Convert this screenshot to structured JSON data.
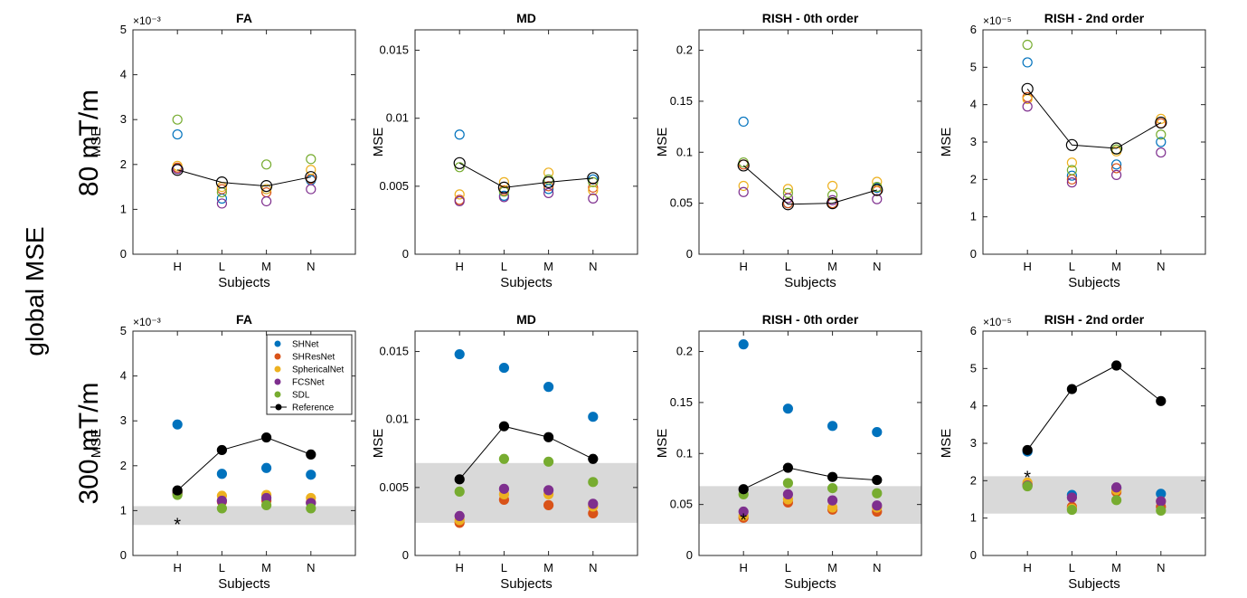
{
  "figure_label": "global MSE",
  "row_labels": [
    "80 mT/m",
    "300 mT/m"
  ],
  "chart_data": [
    {
      "type": "scatter",
      "title": "FA",
      "xlabel": "Subjects",
      "ylabel": "MSE",
      "ylim": [
        0,
        5
      ],
      "yticks": [
        "0",
        "1",
        "2",
        "3",
        "4",
        "5"
      ],
      "exponent_label": "×10⁻³",
      "categories": [
        "H",
        "L",
        "M",
        "N"
      ],
      "marker": "open",
      "series": [
        {
          "color": "#0072BD",
          "values": [
            2.67,
            1.24,
            1.45,
            1.65
          ]
        },
        {
          "color": "#D95319",
          "values": [
            1.93,
            1.45,
            1.38,
            1.68
          ]
        },
        {
          "color": "#EDB120",
          "values": [
            1.97,
            1.5,
            1.45,
            1.88
          ]
        },
        {
          "color": "#7E2F8E",
          "values": [
            1.9,
            1.13,
            1.18,
            1.45
          ]
        },
        {
          "color": "#77AC30",
          "values": [
            3.0,
            1.38,
            2.0,
            2.12
          ]
        }
      ],
      "reference": {
        "name": "Reference",
        "values": [
          1.88,
          1.6,
          1.52,
          1.72
        ]
      }
    },
    {
      "type": "scatter",
      "title": "MD",
      "xlabel": "Subjects",
      "ylabel": "MSE",
      "ylim": [
        0,
        0.0165
      ],
      "yticks": [
        "0",
        "0.005",
        "0.01",
        "0.015"
      ],
      "ytick_values": [
        0,
        0.005,
        0.01,
        0.015
      ],
      "categories": [
        "H",
        "L",
        "M",
        "N"
      ],
      "marker": "open",
      "series": [
        {
          "color": "#0072BD",
          "values": [
            0.0088,
            0.0043,
            0.0048,
            0.0055
          ]
        },
        {
          "color": "#D95319",
          "values": [
            0.004,
            0.0047,
            0.005,
            0.0049
          ]
        },
        {
          "color": "#EDB120",
          "values": [
            0.0044,
            0.0053,
            0.006,
            0.0047
          ]
        },
        {
          "color": "#7E2F8E",
          "values": [
            0.0039,
            0.0042,
            0.0045,
            0.0041
          ]
        },
        {
          "color": "#77AC30",
          "values": [
            0.0064,
            0.0046,
            0.0055,
            0.0053
          ]
        }
      ],
      "reference": {
        "name": "Reference",
        "values": [
          0.0067,
          0.0049,
          0.0053,
          0.0056
        ]
      }
    },
    {
      "type": "scatter",
      "title": "RISH - 0th order",
      "xlabel": "Subjects",
      "ylabel": "MSE",
      "ylim": [
        0,
        0.22
      ],
      "yticks": [
        "0",
        "0.05",
        "0.1",
        "0.15",
        "0.2"
      ],
      "ytick_values": [
        0,
        0.05,
        0.1,
        0.15,
        0.2
      ],
      "categories": [
        "H",
        "L",
        "M",
        "N"
      ],
      "marker": "open",
      "series": [
        {
          "color": "#0072BD",
          "values": [
            0.13,
            0.05,
            0.05,
            0.065
          ]
        },
        {
          "color": "#D95319",
          "values": [
            0.088,
            0.05,
            0.05,
            0.062
          ]
        },
        {
          "color": "#EDB120",
          "values": [
            0.067,
            0.064,
            0.067,
            0.071
          ]
        },
        {
          "color": "#7E2F8E",
          "values": [
            0.061,
            0.055,
            0.053,
            0.054
          ]
        },
        {
          "color": "#77AC30",
          "values": [
            0.09,
            0.06,
            0.058,
            0.066
          ]
        }
      ],
      "reference": {
        "name": "Reference",
        "values": [
          0.087,
          0.049,
          0.05,
          0.063
        ]
      }
    },
    {
      "type": "scatter",
      "title": "RISH - 2nd order",
      "xlabel": "Subjects",
      "ylabel": "MSE",
      "ylim": [
        0,
        6
      ],
      "yticks": [
        "0",
        "1",
        "2",
        "3",
        "4",
        "5",
        "6"
      ],
      "exponent_label": "×10⁻⁵",
      "categories": [
        "H",
        "L",
        "M",
        "N"
      ],
      "marker": "open",
      "series": [
        {
          "color": "#0072BD",
          "values": [
            5.13,
            2.1,
            2.4,
            3.0
          ]
        },
        {
          "color": "#D95319",
          "values": [
            4.2,
            2.0,
            2.3,
            3.5
          ]
        },
        {
          "color": "#EDB120",
          "values": [
            4.15,
            2.45,
            2.75,
            3.62
          ]
        },
        {
          "color": "#7E2F8E",
          "values": [
            3.95,
            1.92,
            2.12,
            2.72
          ]
        },
        {
          "color": "#77AC30",
          "values": [
            5.6,
            2.25,
            2.8,
            3.2
          ]
        }
      ],
      "reference": {
        "name": "Reference",
        "values": [
          4.42,
          2.92,
          2.83,
          3.52
        ]
      }
    },
    {
      "type": "scatter",
      "title": "FA",
      "xlabel": "Subjects",
      "ylabel": "MSE",
      "ylim": [
        0,
        5
      ],
      "yticks": [
        "0",
        "1",
        "2",
        "3",
        "4",
        "5"
      ],
      "exponent_label": "×10⁻³",
      "categories": [
        "H",
        "L",
        "M",
        "N"
      ],
      "marker": "filled",
      "band": [
        0.68,
        1.1
      ],
      "star": {
        "category": "H",
        "value": 0.72
      },
      "legend": [
        "SHNet",
        "SHResNet",
        "SphericalNet",
        "FCSNet",
        "SDL",
        "Reference"
      ],
      "series": [
        {
          "name": "SHNet",
          "color": "#0072BD",
          "values": [
            2.92,
            1.82,
            1.95,
            1.8
          ]
        },
        {
          "name": "SHResNet",
          "color": "#D95319",
          "values": [
            1.38,
            1.2,
            1.22,
            1.18
          ]
        },
        {
          "name": "SphericalNet",
          "color": "#EDB120",
          "values": [
            1.42,
            1.33,
            1.35,
            1.28
          ]
        },
        {
          "name": "FCSNet",
          "color": "#7E2F8E",
          "values": [
            1.4,
            1.22,
            1.28,
            1.17
          ]
        },
        {
          "name": "SDL",
          "color": "#77AC30",
          "values": [
            1.35,
            1.05,
            1.12,
            1.05
          ]
        }
      ],
      "reference": {
        "name": "Reference",
        "values": [
          1.45,
          2.35,
          2.63,
          2.25
        ]
      }
    },
    {
      "type": "scatter",
      "title": "MD",
      "xlabel": "Subjects",
      "ylabel": "MSE",
      "ylim": [
        0,
        0.0165
      ],
      "yticks": [
        "0",
        "0.005",
        "0.01",
        "0.015"
      ],
      "ytick_values": [
        0,
        0.005,
        0.01,
        0.015
      ],
      "categories": [
        "H",
        "L",
        "M",
        "N"
      ],
      "marker": "filled",
      "band": [
        0.0024,
        0.0068
      ],
      "series": [
        {
          "color": "#0072BD",
          "values": [
            0.0148,
            0.0138,
            0.0124,
            0.0102
          ]
        },
        {
          "color": "#D95319",
          "values": [
            0.0024,
            0.0041,
            0.0037,
            0.0031
          ]
        },
        {
          "color": "#EDB120",
          "values": [
            0.0026,
            0.0045,
            0.0045,
            0.0036
          ]
        },
        {
          "color": "#7E2F8E",
          "values": [
            0.0029,
            0.0049,
            0.0048,
            0.0038
          ]
        },
        {
          "color": "#77AC30",
          "values": [
            0.0047,
            0.0071,
            0.0069,
            0.0054
          ]
        }
      ],
      "reference": {
        "name": "Reference",
        "values": [
          0.0056,
          0.0095,
          0.0087,
          0.0071
        ]
      }
    },
    {
      "type": "scatter",
      "title": "RISH - 0th order",
      "xlabel": "Subjects",
      "ylabel": "MSE",
      "ylim": [
        0,
        0.22
      ],
      "yticks": [
        "0",
        "0.05",
        "0.1",
        "0.15",
        "0.2"
      ],
      "ytick_values": [
        0,
        0.05,
        0.1,
        0.15,
        0.2
      ],
      "categories": [
        "H",
        "L",
        "M",
        "N"
      ],
      "marker": "filled",
      "band": [
        0.031,
        0.068
      ],
      "star": {
        "category": "H",
        "value": 0.036
      },
      "series": [
        {
          "color": "#0072BD",
          "values": [
            0.207,
            0.144,
            0.127,
            0.121
          ]
        },
        {
          "color": "#D95319",
          "values": [
            0.037,
            0.052,
            0.045,
            0.043
          ]
        },
        {
          "color": "#EDB120",
          "values": [
            0.039,
            0.055,
            0.047,
            0.047
          ]
        },
        {
          "color": "#7E2F8E",
          "values": [
            0.043,
            0.06,
            0.054,
            0.049
          ]
        },
        {
          "color": "#77AC30",
          "values": [
            0.06,
            0.071,
            0.066,
            0.061
          ]
        }
      ],
      "reference": {
        "name": "Reference",
        "values": [
          0.065,
          0.086,
          0.077,
          0.074
        ]
      }
    },
    {
      "type": "scatter",
      "title": "RISH - 2nd order",
      "xlabel": "Subjects",
      "ylabel": "MSE",
      "ylim": [
        0,
        6
      ],
      "yticks": [
        "0",
        "1",
        "2",
        "3",
        "4",
        "5",
        "6"
      ],
      "exponent_label": "×10⁻⁵",
      "categories": [
        "H",
        "L",
        "M",
        "N"
      ],
      "marker": "filled",
      "band": [
        1.12,
        2.12
      ],
      "star": {
        "category": "H",
        "value": 2.12
      },
      "series": [
        {
          "color": "#0072BD",
          "values": [
            2.78,
            1.62,
            1.8,
            1.65
          ]
        },
        {
          "color": "#D95319",
          "values": [
            1.9,
            1.3,
            1.7,
            1.3
          ]
        },
        {
          "color": "#EDB120",
          "values": [
            1.95,
            1.25,
            1.75,
            1.45
          ]
        },
        {
          "color": "#7E2F8E",
          "values": [
            1.87,
            1.55,
            1.82,
            1.45
          ]
        },
        {
          "color": "#77AC30",
          "values": [
            1.85,
            1.22,
            1.48,
            1.2
          ]
        }
      ],
      "reference": {
        "name": "Reference",
        "values": [
          2.82,
          4.45,
          5.08,
          4.13
        ]
      }
    }
  ]
}
